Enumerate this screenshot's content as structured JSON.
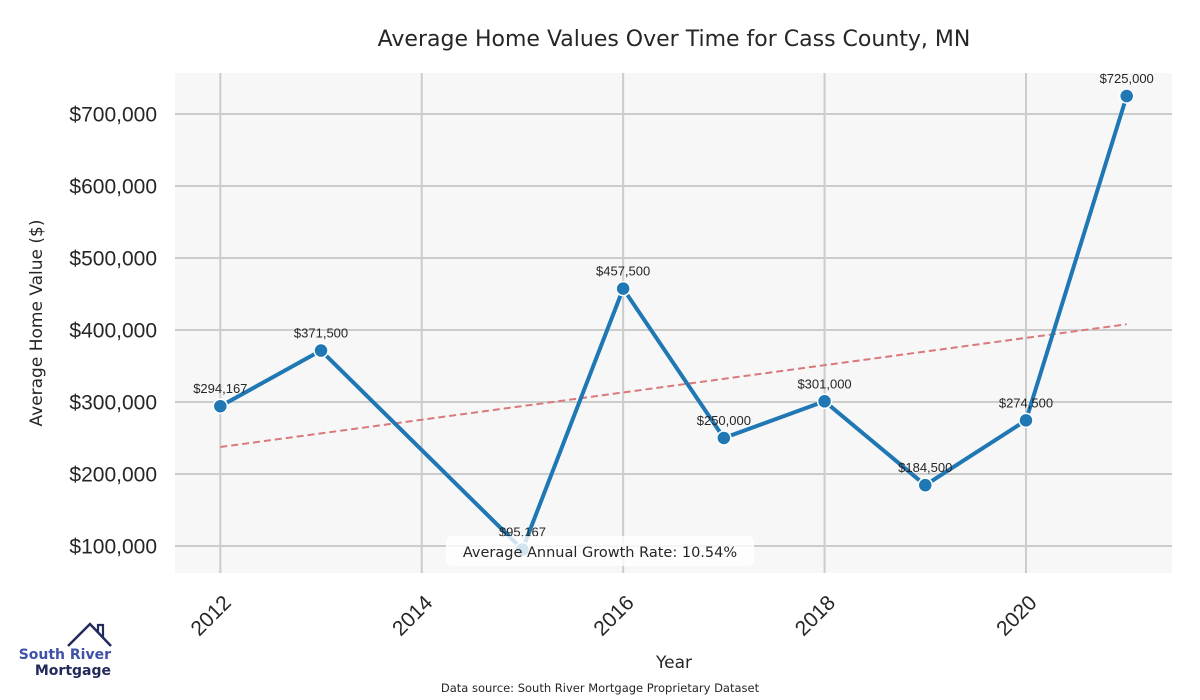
{
  "chart_data": {
    "type": "line",
    "title": "Average Home Values Over Time for Cass County, MN",
    "xlabel": "Year",
    "ylabel": "Average Home Value ($)",
    "x": [
      2012,
      2013,
      2015,
      2016,
      2017,
      2018,
      2019,
      2020,
      2021
    ],
    "series": [
      {
        "name": "Average Home Value",
        "color": "#1f77b4",
        "values": [
          294167,
          371500,
          95167,
          457500,
          250000,
          301000,
          184500,
          274500,
          725000
        ],
        "labels": [
          "$294,167",
          "$371,500",
          "$95,167",
          "$457,500",
          "$250,000",
          "$301,000",
          "$184,500",
          "$274,500",
          "$725,000"
        ]
      }
    ],
    "trend_line": {
      "name": "Linear trend",
      "color": "#d9797b",
      "style": "dashed",
      "x": [
        2012,
        2021
      ],
      "y": [
        237500,
        408000
      ]
    },
    "xticks": [
      2012,
      2014,
      2016,
      2018,
      2020
    ],
    "xtick_labels": [
      "2012",
      "2014",
      "2016",
      "2018",
      "2020"
    ],
    "yticks": [
      100000,
      200000,
      300000,
      400000,
      500000,
      600000,
      700000
    ],
    "ytick_labels": [
      "$100,000",
      "$200,000",
      "$300,000",
      "$400,000",
      "$500,000",
      "$600,000",
      "$700,000"
    ],
    "xlim": [
      2011.55,
      2021.45
    ],
    "ylim": [
      62500,
      757000
    ],
    "grid": true,
    "annotation": "Average Annual Growth Rate: 10.54%",
    "annotation_position": "bottom-center",
    "source_note": "Data source: South River Mortgage Proprietary Dataset",
    "colors": {
      "plot_background": "#f7f7f7",
      "grid": "#cccccc",
      "line": "#1f77b4",
      "trend": "#d9797b"
    }
  },
  "logo": {
    "line1": "South River",
    "line2": "Mortgage",
    "icon": "house-roof-icon",
    "colors": {
      "primary": "#3f51a8",
      "dark": "#232a5c"
    }
  }
}
